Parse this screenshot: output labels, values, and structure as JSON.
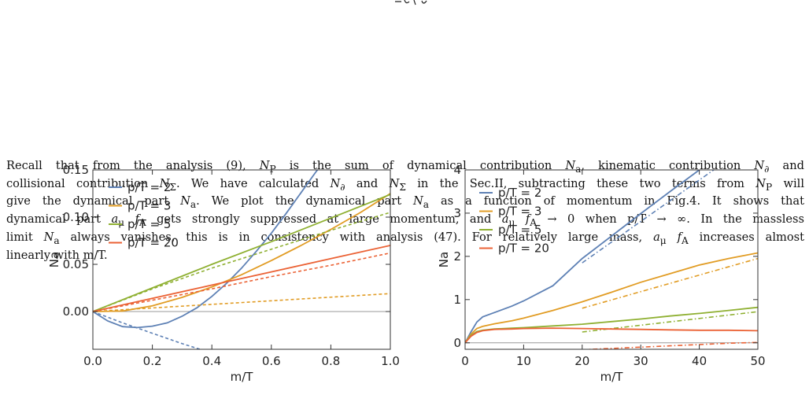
{
  "paragraph": {
    "lines": [
      "Recall that from the analysis (9), N_P is the sum of dynamical contribution N_a, kinematic contribution N_∂ and",
      "collisional contribution N_Σ. We have calculated N_∂ and N_Σ in the Sec.II, subtracting these two terms from N_P will",
      "give the dynamical part N_a. We plot the dynamical part N_a as a function of momentum in Fig.4. It shows that",
      "dynamical part a_μ f_A gets strongly suppressed at large momentum, and a_μ f_A → 0 when p/T → ∞. In the massless",
      "limit N_a always vanishes, this is in consistency with analysis (47). For relatively large mass, a_μ f_A increases almost",
      "linearly with m/T."
    ]
  },
  "colors": {
    "p2": "#5e81b5",
    "p3": "#e19c24",
    "p5": "#8fb032",
    "p20": "#eb6235",
    "zero": "#999999"
  },
  "chart_data": [
    {
      "type": "line",
      "xlabel": "m/T",
      "ylabel": "Na",
      "xlim": [
        0,
        1
      ],
      "ylim": [
        -0.04,
        0.15
      ],
      "xticks": [
        "0.0",
        "0.2",
        "0.4",
        "0.6",
        "0.8",
        "1.0"
      ],
      "xtick_values": [
        0,
        0.2,
        0.4,
        0.6,
        0.8,
        1.0
      ],
      "yticks": [
        "0.00",
        "0.05",
        "0.10",
        "0.15"
      ],
      "ytick_values": [
        0,
        0.05,
        0.1,
        0.15
      ],
      "legend": "top-left",
      "series": [
        {
          "name": "p/T = 2",
          "color": "#5e81b5",
          "x": [
            0,
            0.05,
            0.1,
            0.15,
            0.2,
            0.25,
            0.3,
            0.35,
            0.4,
            0.45,
            0.5,
            0.55,
            0.6,
            0.65,
            0.7,
            0.75,
            0.8
          ],
          "y": [
            0,
            -0.01,
            -0.016,
            -0.017,
            -0.0155,
            -0.012,
            -0.005,
            0.004,
            0.016,
            0.03,
            0.046,
            0.064,
            0.083,
            0.104,
            0.126,
            0.148,
            0.168
          ],
          "dashed_x": [
            0,
            0.1,
            0.2,
            0.3,
            0.36
          ],
          "dashed_y": [
            0,
            -0.012,
            -0.023,
            -0.034,
            -0.04
          ]
        },
        {
          "name": "p/T = 3",
          "color": "#e19c24",
          "x": [
            0,
            0.1,
            0.2,
            0.3,
            0.4,
            0.5,
            0.6,
            0.7,
            0.8,
            0.9,
            1.0
          ],
          "y": [
            0,
            0.0005,
            0.006,
            0.015,
            0.026,
            0.039,
            0.054,
            0.07,
            0.087,
            0.105,
            0.125
          ],
          "dashed_x": [
            0,
            1.0
          ],
          "dashed_y": [
            0,
            0.019
          ]
        },
        {
          "name": "p/T = 5",
          "color": "#8fb032",
          "x": [
            0,
            0.2,
            0.4,
            0.6,
            0.8,
            1.0
          ],
          "y": [
            0,
            0.025,
            0.05,
            0.074,
            0.099,
            0.124
          ],
          "dashed_x": [
            0,
            0.2,
            0.4,
            0.6,
            0.8,
            1.0
          ],
          "dashed_y": [
            0,
            0.024,
            0.046,
            0.066,
            0.086,
            0.105
          ]
        },
        {
          "name": "p/T = 20",
          "color": "#eb6235",
          "x": [
            0,
            0.2,
            0.4,
            0.6,
            0.8,
            1.0
          ],
          "y": [
            0,
            0.014,
            0.028,
            0.042,
            0.056,
            0.07
          ],
          "dashed_x": [
            0,
            0.2,
            0.4,
            0.6,
            0.8,
            1.0
          ],
          "dashed_y": [
            0,
            0.012,
            0.024,
            0.037,
            0.049,
            0.062
          ]
        }
      ]
    },
    {
      "type": "line",
      "xlabel": "m/T",
      "ylabel": "Na",
      "xlim": [
        0,
        50
      ],
      "ylim": [
        -0.15,
        4
      ],
      "xticks": [
        "0",
        "10",
        "20",
        "30",
        "40",
        "50"
      ],
      "xtick_values": [
        0,
        10,
        20,
        30,
        40,
        50
      ],
      "yticks": [
        "0",
        "1",
        "2",
        "3",
        "4"
      ],
      "ytick_values": [
        0,
        1,
        2,
        3,
        4
      ],
      "legend": "top-left",
      "series": [
        {
          "name": "p/T = 2",
          "color": "#5e81b5",
          "x": [
            0,
            1,
            2,
            3,
            5,
            8,
            10,
            15,
            20,
            25,
            30,
            35,
            40,
            44
          ],
          "y": [
            0,
            0.25,
            0.48,
            0.6,
            0.7,
            0.85,
            0.97,
            1.32,
            1.95,
            2.47,
            2.99,
            3.5,
            4.0,
            4.4
          ],
          "dashed_x": [
            20,
            44
          ],
          "dashed_y": [
            1.85,
            4.15
          ]
        },
        {
          "name": "p/T = 3",
          "color": "#e19c24",
          "x": [
            0,
            1,
            2,
            3,
            5,
            8,
            10,
            15,
            20,
            25,
            30,
            35,
            40,
            45,
            50
          ],
          "y": [
            0,
            0.2,
            0.33,
            0.38,
            0.44,
            0.51,
            0.57,
            0.75,
            0.95,
            1.17,
            1.4,
            1.6,
            1.8,
            1.95,
            2.08
          ],
          "dashed_x": [
            20,
            50
          ],
          "dashed_y": [
            0.8,
            1.95
          ]
        },
        {
          "name": "p/T = 5",
          "color": "#8fb032",
          "x": [
            0,
            1,
            2,
            3,
            5,
            8,
            10,
            15,
            20,
            25,
            30,
            35,
            40,
            45,
            50
          ],
          "y": [
            0,
            0.17,
            0.26,
            0.29,
            0.32,
            0.34,
            0.35,
            0.39,
            0.43,
            0.49,
            0.55,
            0.62,
            0.68,
            0.75,
            0.82
          ],
          "dashed_x": [
            20,
            50
          ],
          "dashed_y": [
            0.25,
            0.72
          ]
        },
        {
          "name": "p/T = 20",
          "color": "#eb6235",
          "x": [
            0,
            1,
            2,
            3,
            5,
            8,
            10,
            15,
            20,
            25,
            30,
            35,
            40,
            45,
            50
          ],
          "y": [
            0,
            0.15,
            0.24,
            0.28,
            0.31,
            0.32,
            0.33,
            0.34,
            0.33,
            0.32,
            0.31,
            0.3,
            0.29,
            0.29,
            0.28
          ],
          "dashed_x": [
            20,
            25,
            30,
            35,
            40,
            45,
            50
          ],
          "dashed_y": [
            -0.16,
            -0.13,
            -0.1,
            -0.07,
            -0.04,
            -0.01,
            0.01
          ]
        }
      ]
    }
  ]
}
